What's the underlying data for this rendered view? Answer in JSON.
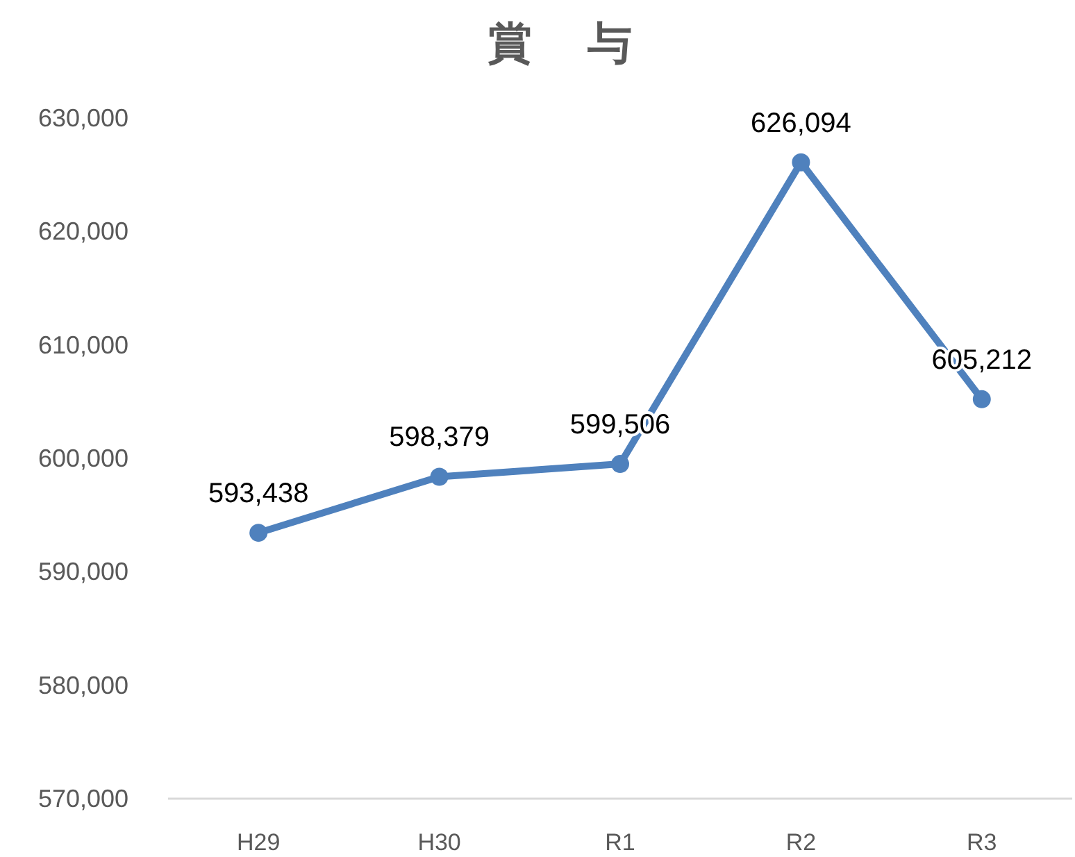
{
  "chart_data": {
    "type": "line",
    "title": "賞　与",
    "categories": [
      "H29",
      "H30",
      "R1",
      "R2",
      "R3"
    ],
    "series": [
      {
        "color": "#4f81bd",
        "values": [
          593438,
          598379,
          599506,
          626094,
          605212
        ],
        "value_labels": [
          "593,438",
          "598,379",
          "599,506",
          "626,094",
          "605,212"
        ]
      }
    ],
    "ylim": [
      570000,
      630000
    ],
    "yticks": [
      {
        "value": 570000,
        "label": "570,000"
      },
      {
        "value": 580000,
        "label": "580,000"
      },
      {
        "value": 590000,
        "label": "590,000"
      },
      {
        "value": 600000,
        "label": "600,000"
      },
      {
        "value": 610000,
        "label": "610,000"
      },
      {
        "value": 620000,
        "label": "620,000"
      },
      {
        "value": 630000,
        "label": "630,000"
      }
    ],
    "marker": "circle"
  }
}
